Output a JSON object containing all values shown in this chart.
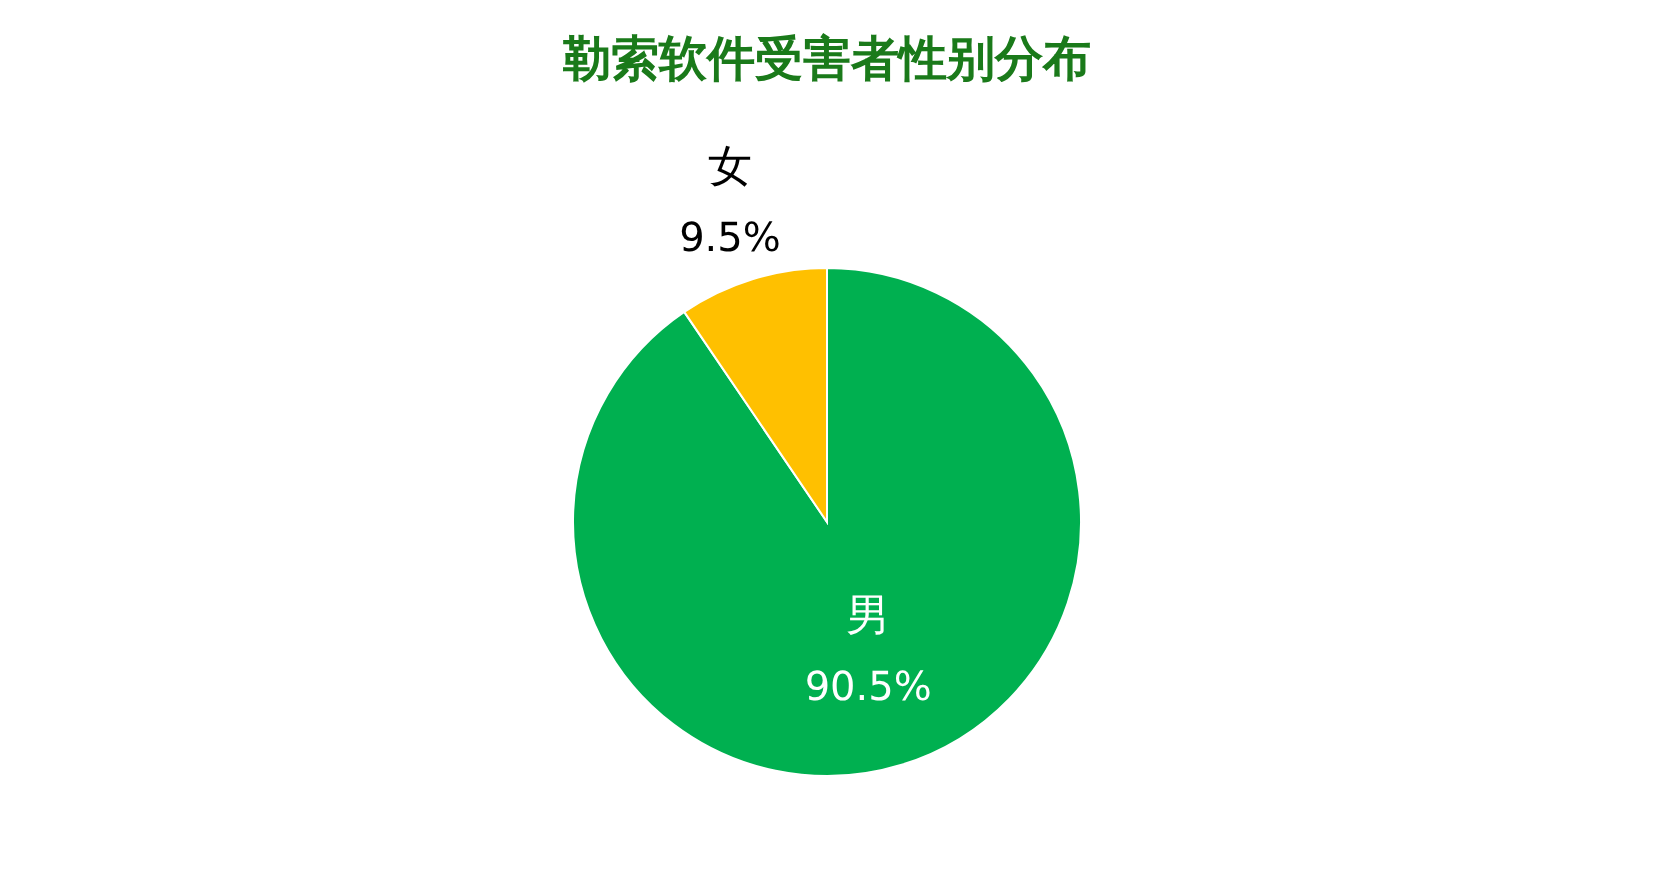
{
  "chart_data": {
    "type": "pie",
    "title": "勒索软件受害者性别分布",
    "categories": [
      "男",
      "女"
    ],
    "values": [
      90.5,
      9.5
    ],
    "colors": [
      "#00b050",
      "#ffc000"
    ],
    "value_labels": [
      "90.5%",
      "9.5%"
    ],
    "data_labels": true,
    "legend": false
  }
}
